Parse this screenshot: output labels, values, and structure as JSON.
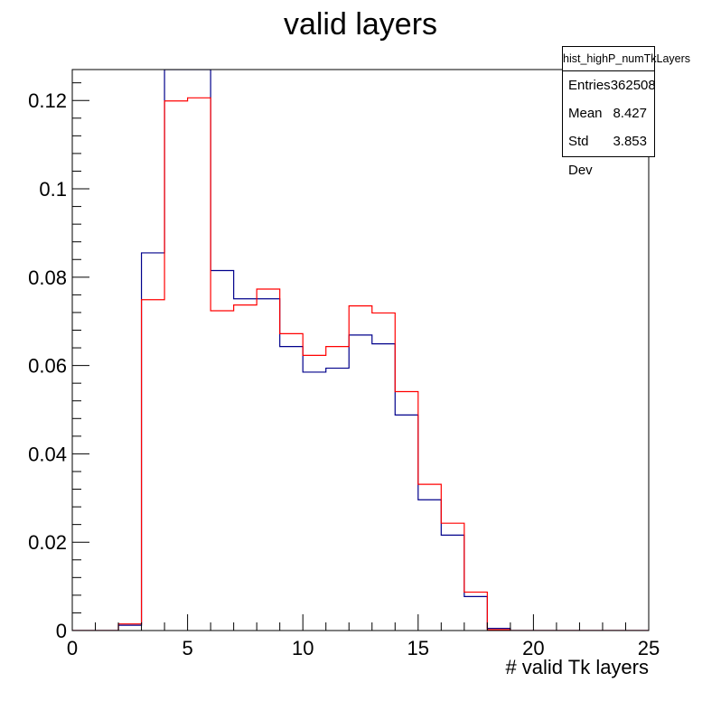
{
  "title": "valid layers",
  "stats": {
    "name": "hist_highP_numTkLayers",
    "rows": [
      {
        "label": "Entries",
        "value": "362508"
      },
      {
        "label": "Mean",
        "value": "8.427"
      },
      {
        "label": "Std Dev",
        "value": "3.853"
      }
    ]
  },
  "chart_data": {
    "type": "line",
    "title": "valid layers",
    "xlabel": "# valid Tk layers",
    "ylabel": "",
    "xlim": [
      0,
      25
    ],
    "ylim": [
      0,
      0.127
    ],
    "grid": false,
    "legend": "none",
    "bin_width": 1,
    "x_ticks": [
      0,
      5,
      10,
      15,
      20,
      25
    ],
    "y_ticks": [
      0,
      0.02,
      0.04,
      0.06,
      0.08,
      0.1,
      0.12
    ],
    "x_tick_labels": [
      "0",
      "5",
      "10",
      "15",
      "20",
      "25"
    ],
    "y_tick_labels": [
      "0",
      "0.02",
      "0.04",
      "0.06",
      "0.08",
      "0.1",
      "0.12"
    ],
    "bin_edges": [
      0,
      1,
      2,
      3,
      4,
      5,
      6,
      7,
      8,
      9,
      10,
      11,
      12,
      13,
      14,
      15,
      16,
      17,
      18,
      19,
      20,
      21,
      22,
      23,
      24,
      25
    ],
    "series": [
      {
        "color": "#00008b",
        "values": [
          0,
          0,
          0.0012,
          0.0855,
          0.14,
          0.14,
          0.0815,
          0.0751,
          0.0751,
          0.0643,
          0.0585,
          0.0594,
          0.0669,
          0.0649,
          0.0488,
          0.0296,
          0.0216,
          0.0077,
          0.0005,
          0,
          0,
          0,
          0,
          0,
          0
        ]
      },
      {
        "color": "#ff0000",
        "values": [
          0,
          0,
          0.0015,
          0.0749,
          0.1199,
          0.1206,
          0.0724,
          0.0737,
          0.0773,
          0.0672,
          0.0623,
          0.0643,
          0.0735,
          0.0719,
          0.0541,
          0.0331,
          0.0243,
          0.0087,
          0.0002,
          0,
          0,
          0,
          0,
          0,
          0
        ]
      }
    ]
  }
}
